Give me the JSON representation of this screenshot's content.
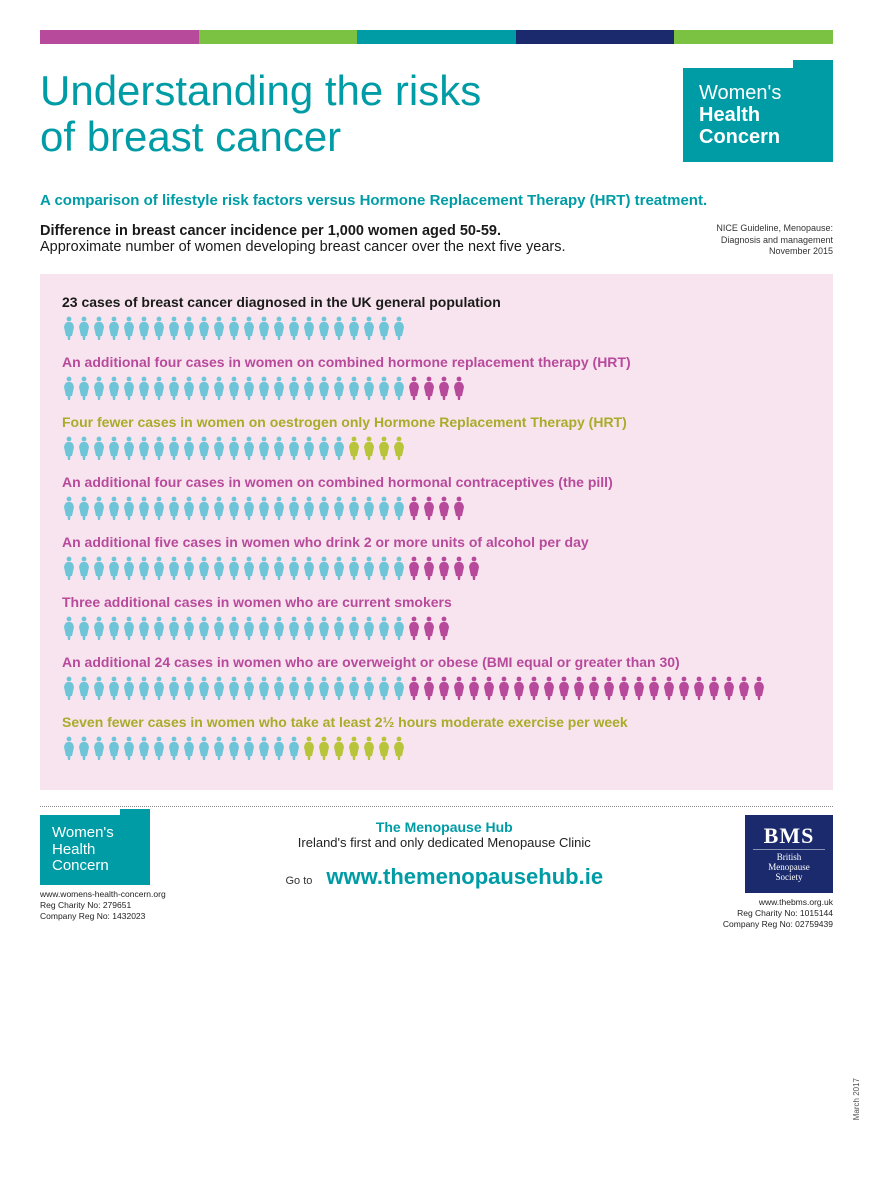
{
  "strip_colors": [
    "#b84a9c",
    "#7bc142",
    "#009ca6",
    "#1a2a6c",
    "#7bc142"
  ],
  "title_line1": "Understanding the risks",
  "title_line2": "of breast cancer",
  "logo": {
    "line1": "Women's",
    "line2": "Health",
    "line3": "Concern"
  },
  "subtitle": "A comparison of lifestyle risk factors versus Hormone Replacement Therapy (HRT) treatment.",
  "intro_strong": "Difference in breast cancer incidence per 1,000 women aged 50-59.",
  "intro_sub": "Approximate number of women developing breast cancer over the next five years.",
  "citation": {
    "l1": "NICE Guideline, Menopause:",
    "l2": "Diagnosis and management",
    "l3": "November 2015"
  },
  "colors": {
    "base": "#6ec5d8",
    "additional": "#b84a9c",
    "fewer": "#b8c43a",
    "label_dark": "#1a1a1a",
    "label_magenta": "#b84a9c",
    "label_olive": "#a8ac2a",
    "panel_bg": "#f7e4ee"
  },
  "baseline": 23,
  "rows": [
    {
      "label": "23 cases of breast cancer diagnosed in the UK general population",
      "label_color": "#1a1a1a",
      "base": 23,
      "delta": 0,
      "delta_type": "none"
    },
    {
      "label": "An additional four cases in women on combined hormone replacement therapy (HRT)",
      "label_color": "#b84a9c",
      "base": 23,
      "delta": 4,
      "delta_type": "additional"
    },
    {
      "label": "Four fewer  cases in women on oestrogen only Hormone Replacement Therapy (HRT)",
      "label_color": "#a8ac2a",
      "base": 19,
      "delta": 4,
      "delta_type": "fewer"
    },
    {
      "label": "An additional four cases in women on combined hormonal contraceptives (the pill)",
      "label_color": "#b84a9c",
      "base": 23,
      "delta": 4,
      "delta_type": "additional"
    },
    {
      "label": "An additional five cases in women who drink 2 or more units of alcohol per day",
      "label_color": "#b84a9c",
      "base": 23,
      "delta": 5,
      "delta_type": "additional"
    },
    {
      "label": "Three additional cases in women who are current smokers",
      "label_color": "#b84a9c",
      "base": 23,
      "delta": 3,
      "delta_type": "additional"
    },
    {
      "label": "An additional 24 cases in women who are overweight or obese (BMI equal or greater than 30)",
      "label_color": "#b84a9c",
      "base": 23,
      "delta": 24,
      "delta_type": "additional"
    },
    {
      "label": "Seven fewer cases in women who take at least 2½ hours moderate exercise per week",
      "label_color": "#a8ac2a",
      "base": 16,
      "delta": 7,
      "delta_type": "fewer"
    }
  ],
  "footer": {
    "whc": {
      "url": "www.womens-health-concern.org",
      "charity": "Reg Charity No: 279651",
      "company": "Company Reg No: 1432023"
    },
    "hub": {
      "title": "The Menopause Hub",
      "tagline": "Ireland's first and only dedicated Menopause Clinic",
      "goto": "Go to",
      "url": "www.themenopausehub.ie"
    },
    "bms": {
      "top": "BMS",
      "l1": "British",
      "l2": "Menopause",
      "l3": "Society",
      "url": "www.thebms.org.uk",
      "charity": "Reg Charity No: 1015144",
      "company": "Company Reg No: 02759439"
    },
    "date": "March 2017"
  }
}
